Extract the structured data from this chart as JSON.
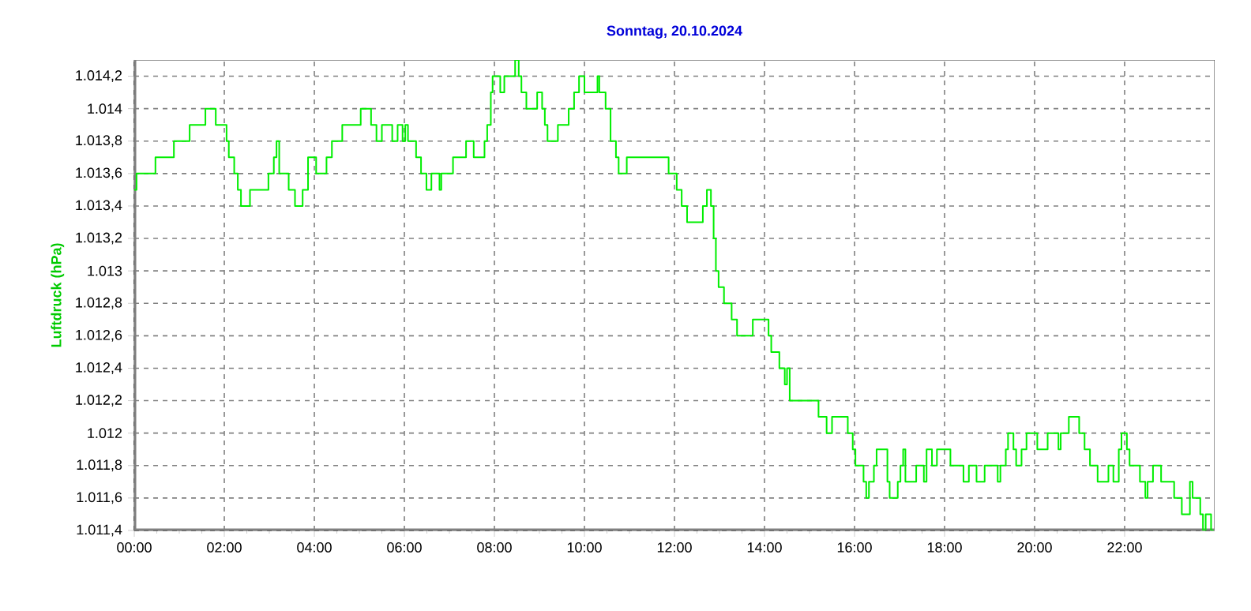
{
  "chart_data": {
    "type": "step",
    "title": "Sonntag, 20.10.2024",
    "ylabel": "Luftdruck  (hPa)",
    "xlim": [
      0,
      24
    ],
    "ylim": [
      1011.4,
      1014.3
    ],
    "xticks": [
      {
        "value": 0,
        "label": "00:00"
      },
      {
        "value": 2,
        "label": "02:00"
      },
      {
        "value": 4,
        "label": "04:00"
      },
      {
        "value": 6,
        "label": "06:00"
      },
      {
        "value": 8,
        "label": "08:00"
      },
      {
        "value": 10,
        "label": "10:00"
      },
      {
        "value": 12,
        "label": "12:00"
      },
      {
        "value": 14,
        "label": "14:00"
      },
      {
        "value": 16,
        "label": "16:00"
      },
      {
        "value": 18,
        "label": "18:00"
      },
      {
        "value": 20,
        "label": "20:00"
      },
      {
        "value": 22,
        "label": "22:00"
      }
    ],
    "yticks": [
      {
        "value": 1011.4,
        "label": "1.011,4"
      },
      {
        "value": 1011.6,
        "label": "1.011,6"
      },
      {
        "value": 1011.8,
        "label": "1.011,8"
      },
      {
        "value": 1012,
        "label": "1.012"
      },
      {
        "value": 1012.2,
        "label": "1.012,2"
      },
      {
        "value": 1012.4,
        "label": "1.012,4"
      },
      {
        "value": 1012.6,
        "label": "1.012,6"
      },
      {
        "value": 1012.8,
        "label": "1.012,8"
      },
      {
        "value": 1013,
        "label": "1.013"
      },
      {
        "value": 1013.2,
        "label": "1.013,2"
      },
      {
        "value": 1013.4,
        "label": "1.013,4"
      },
      {
        "value": 1013.6,
        "label": "1.013,6"
      },
      {
        "value": 1013.8,
        "label": "1.013,8"
      },
      {
        "value": 1014,
        "label": "1.014"
      },
      {
        "value": 1014.2,
        "label": "1.014,2"
      }
    ],
    "grid": true,
    "marker": "none",
    "line_style": "solid",
    "color": "#00ee00",
    "x": [
      0,
      0.05,
      0.47,
      0.88,
      1.23,
      1.58,
      1.81,
      2.05,
      2.1,
      2.22,
      2.3,
      2.37,
      2.57,
      2.98,
      3.1,
      3.16,
      3.22,
      3.43,
      3.57,
      3.74,
      3.86,
      4.04,
      4.27,
      4.39,
      4.62,
      5.03,
      5.26,
      5.38,
      5.5,
      5.73,
      5.85,
      5.96,
      6.02,
      6.08,
      6.26,
      6.37,
      6.49,
      6.6,
      6.78,
      6.82,
      7.08,
      7.37,
      7.54,
      7.78,
      7.84,
      7.92,
      7.96,
      8.13,
      8.22,
      8.46,
      8.54,
      8.6,
      8.71,
      8.95,
      9.06,
      9.12,
      9.18,
      9.41,
      9.65,
      9.77,
      9.88,
      10.0,
      10.29,
      10.33,
      10.47,
      10.58,
      10.7,
      10.76,
      10.94,
      11.87,
      12.05,
      12.16,
      12.28,
      12.63,
      12.72,
      12.81,
      12.87,
      12.92,
      12.98,
      13.1,
      13.27,
      13.39,
      13.74,
      14.09,
      14.15,
      14.33,
      14.45,
      14.5,
      14.56,
      15.2,
      15.38,
      15.5,
      15.79,
      15.85,
      15.96,
      16.02,
      16.2,
      16.26,
      16.32,
      16.43,
      16.49,
      16.73,
      16.78,
      16.96,
      17.02,
      17.08,
      17.13,
      17.37,
      17.54,
      17.6,
      17.72,
      17.83,
      18.13,
      18.42,
      18.54,
      18.71,
      18.89,
      19.18,
      19.24,
      19.36,
      19.41,
      19.53,
      19.59,
      19.71,
      19.82,
      20.06,
      20.29,
      20.53,
      20.58,
      20.76,
      20.99,
      21.11,
      21.23,
      21.4,
      21.64,
      21.75,
      21.87,
      21.93,
      22.05,
      22.11,
      22.34,
      22.46,
      22.51,
      22.63,
      22.81,
      23.1,
      23.27,
      23.45,
      23.51,
      23.68,
      23.74,
      23.8,
      23.92,
      23.98
    ],
    "values": [
      1013.5,
      1013.6,
      1013.7,
      1013.8,
      1013.9,
      1014.0,
      1013.9,
      1013.8,
      1013.7,
      1013.6,
      1013.5,
      1013.4,
      1013.5,
      1013.6,
      1013.7,
      1013.8,
      1013.6,
      1013.5,
      1013.4,
      1013.5,
      1013.7,
      1013.6,
      1013.7,
      1013.8,
      1013.9,
      1014.0,
      1013.9,
      1013.8,
      1013.9,
      1013.8,
      1013.9,
      1013.8,
      1013.9,
      1013.8,
      1013.7,
      1013.6,
      1013.5,
      1013.6,
      1013.5,
      1013.6,
      1013.7,
      1013.8,
      1013.7,
      1013.8,
      1013.9,
      1014.1,
      1014.2,
      1014.1,
      1014.2,
      1014.3,
      1014.2,
      1014.1,
      1014.0,
      1014.1,
      1014.0,
      1013.9,
      1013.8,
      1013.9,
      1014.0,
      1014.1,
      1014.2,
      1014.1,
      1014.2,
      1014.1,
      1014.0,
      1013.8,
      1013.7,
      1013.6,
      1013.7,
      1013.6,
      1013.5,
      1013.4,
      1013.3,
      1013.4,
      1013.5,
      1013.4,
      1013.2,
      1013.0,
      1012.9,
      1012.8,
      1012.7,
      1012.6,
      1012.7,
      1012.6,
      1012.5,
      1012.4,
      1012.3,
      1012.4,
      1012.2,
      1012.1,
      1012.0,
      1012.1,
      1012.1,
      1012.0,
      1011.9,
      1011.8,
      1011.7,
      1011.6,
      1011.7,
      1011.8,
      1011.9,
      1011.7,
      1011.6,
      1011.7,
      1011.8,
      1011.9,
      1011.7,
      1011.8,
      1011.7,
      1011.9,
      1011.8,
      1011.9,
      1011.8,
      1011.7,
      1011.8,
      1011.7,
      1011.8,
      1011.7,
      1011.8,
      1011.9,
      1012.0,
      1011.9,
      1011.8,
      1011.9,
      1012.0,
      1011.9,
      1012.0,
      1011.9,
      1012.0,
      1012.1,
      1012.0,
      1011.9,
      1011.8,
      1011.7,
      1011.8,
      1011.7,
      1011.9,
      1012.0,
      1011.9,
      1011.8,
      1011.7,
      1011.6,
      1011.7,
      1011.8,
      1011.7,
      1011.6,
      1011.5,
      1011.7,
      1011.6,
      1011.5,
      1011.4,
      1011.5,
      1011.4,
      1011.4
    ]
  }
}
